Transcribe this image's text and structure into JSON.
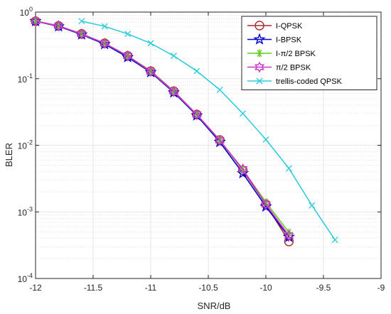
{
  "chart_data": {
    "type": "line",
    "xlabel": "SNR/dB",
    "ylabel": "BLER",
    "xlim": [
      -12,
      -9
    ],
    "ylim": [
      0.0001,
      1
    ],
    "yscale": "log",
    "grid": true,
    "minor_grid": true,
    "legend_position": "top-right",
    "x_ticks": [
      -12,
      -11.5,
      -11,
      -10.5,
      -10,
      -9.5,
      -9
    ],
    "x_tick_labels": [
      "-12",
      "-11.5",
      "-11",
      "-10.5",
      "-10",
      "-9.5",
      "-9"
    ],
    "y_ticks": [
      0.0001,
      0.001,
      0.01,
      0.1,
      1
    ],
    "y_tick_labels": [
      {
        "base": "10",
        "exp": "-4"
      },
      {
        "base": "10",
        "exp": "-3"
      },
      {
        "base": "10",
        "exp": "-2"
      },
      {
        "base": "10",
        "exp": "-1"
      },
      {
        "base": "10",
        "exp": "0"
      }
    ],
    "series": [
      {
        "name": "I-QPSK",
        "color": "#a52a2a",
        "marker": "circle",
        "x": [
          -12,
          -11.8,
          -11.6,
          -11.4,
          -11.2,
          -11,
          -10.8,
          -10.6,
          -10.4,
          -10.2,
          -10,
          -9.8
        ],
        "y": [
          0.73,
          0.62,
          0.47,
          0.34,
          0.22,
          0.13,
          0.065,
          0.029,
          0.012,
          0.0042,
          0.0013,
          0.00036
        ]
      },
      {
        "name": "I-BPSK",
        "color": "#0000cc",
        "marker": "star",
        "x": [
          -12,
          -11.8,
          -11.6,
          -11.4,
          -11.2,
          -11,
          -10.8,
          -10.6,
          -10.4,
          -10.2,
          -10,
          -9.8
        ],
        "y": [
          0.73,
          0.61,
          0.46,
          0.33,
          0.21,
          0.125,
          0.062,
          0.028,
          0.0112,
          0.0038,
          0.0012,
          0.00042
        ]
      },
      {
        "name": "I-π/2 BPSK",
        "color": "#66cc22",
        "marker": "asterisk",
        "x": [
          -12,
          -11.8,
          -11.6,
          -11.4,
          -11.2,
          -11,
          -10.8,
          -10.6,
          -10.4,
          -10.2,
          -10,
          -9.8
        ],
        "y": [
          0.74,
          0.62,
          0.47,
          0.34,
          0.22,
          0.128,
          0.064,
          0.029,
          0.0118,
          0.0043,
          0.0014,
          0.00049
        ]
      },
      {
        "name": "π/2 BPSK",
        "color": "#cc33cc",
        "marker": "hexagram",
        "x": [
          -12,
          -11.8,
          -11.6,
          -11.4,
          -11.2,
          -11,
          -10.8,
          -10.6,
          -10.4,
          -10.2,
          -10,
          -9.8
        ],
        "y": [
          0.73,
          0.62,
          0.47,
          0.34,
          0.22,
          0.128,
          0.064,
          0.029,
          0.0118,
          0.0044,
          0.0013,
          0.00044
        ]
      },
      {
        "name": "trellis-coded QPSK",
        "color": "#33ccdd",
        "marker": "x",
        "x": [
          -11.6,
          -11.4,
          -11.2,
          -11,
          -10.8,
          -10.6,
          -10.4,
          -10.2,
          -10,
          -9.8,
          -9.6,
          -9.4
        ],
        "y": [
          0.73,
          0.61,
          0.47,
          0.34,
          0.22,
          0.13,
          0.068,
          0.03,
          0.0122,
          0.0045,
          0.00125,
          0.00038
        ]
      }
    ]
  }
}
